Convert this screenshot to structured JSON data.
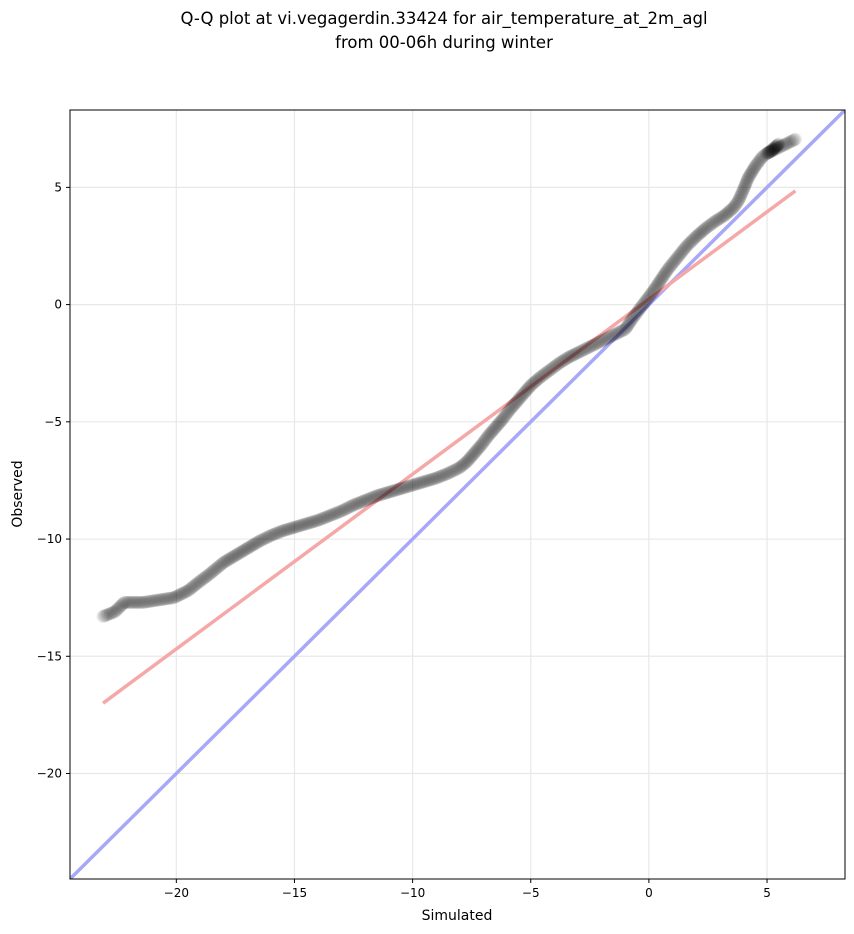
{
  "chart_data": {
    "type": "scatter",
    "title": "Q-Q plot at vi.vegagerdin.33424 for air_temperature_at_2m_agl",
    "subtitle": "from 00-06h during winter",
    "xlabel": "Simulated",
    "ylabel": "Observed",
    "xlim": [
      -24.5,
      8.3
    ],
    "ylim": [
      -24.5,
      8.3
    ],
    "x_ticks": [
      -20,
      -15,
      -10,
      -5,
      0,
      5
    ],
    "y_ticks": [
      -20,
      -15,
      -10,
      -5,
      0,
      5
    ],
    "x_tick_labels": [
      "−20",
      "−15",
      "−10",
      "−5",
      "0",
      "5"
    ],
    "y_tick_labels": [
      "−20",
      "−15",
      "−10",
      "−5",
      "0",
      "5"
    ],
    "grid": true,
    "quantile_curve": [
      [
        -23.1,
        -13.3
      ],
      [
        -22.6,
        -13.1
      ],
      [
        -22.2,
        -12.7
      ],
      [
        -21.4,
        -12.7
      ],
      [
        -20.1,
        -12.5
      ],
      [
        -19.5,
        -12.2
      ],
      [
        -19.0,
        -11.8
      ],
      [
        -18.6,
        -11.5
      ],
      [
        -18.0,
        -11.0
      ],
      [
        -17.5,
        -10.7
      ],
      [
        -17.0,
        -10.4
      ],
      [
        -16.5,
        -10.1
      ],
      [
        -16.0,
        -9.85
      ],
      [
        -15.5,
        -9.65
      ],
      [
        -15.0,
        -9.5
      ],
      [
        -14.5,
        -9.35
      ],
      [
        -14.0,
        -9.2
      ],
      [
        -13.5,
        -9.0
      ],
      [
        -13.0,
        -8.8
      ],
      [
        -12.5,
        -8.55
      ],
      [
        -12.0,
        -8.35
      ],
      [
        -11.5,
        -8.15
      ],
      [
        -11.0,
        -8.0
      ],
      [
        -10.5,
        -7.85
      ],
      [
        -10.0,
        -7.7
      ],
      [
        -9.5,
        -7.55
      ],
      [
        -9.0,
        -7.4
      ],
      [
        -8.5,
        -7.2
      ],
      [
        -8.0,
        -6.95
      ],
      [
        -7.7,
        -6.7
      ],
      [
        -7.4,
        -6.35
      ],
      [
        -7.1,
        -6.0
      ],
      [
        -6.8,
        -5.6
      ],
      [
        -6.5,
        -5.25
      ],
      [
        -6.2,
        -4.9
      ],
      [
        -5.9,
        -4.5
      ],
      [
        -5.6,
        -4.15
      ],
      [
        -5.3,
        -3.8
      ],
      [
        -5.0,
        -3.45
      ],
      [
        -4.6,
        -3.1
      ],
      [
        -4.2,
        -2.8
      ],
      [
        -3.8,
        -2.5
      ],
      [
        -3.4,
        -2.25
      ],
      [
        -3.0,
        -2.05
      ],
      [
        -2.5,
        -1.8
      ],
      [
        -2.0,
        -1.55
      ],
      [
        -1.5,
        -1.3
      ],
      [
        -1.0,
        -1.05
      ],
      [
        -0.7,
        -0.6
      ],
      [
        -0.4,
        -0.2
      ],
      [
        -0.1,
        0.2
      ],
      [
        0.2,
        0.6
      ],
      [
        0.5,
        1.05
      ],
      [
        0.8,
        1.5
      ],
      [
        1.2,
        2.0
      ],
      [
        1.6,
        2.5
      ],
      [
        2.0,
        2.9
      ],
      [
        2.4,
        3.25
      ],
      [
        2.8,
        3.55
      ],
      [
        3.2,
        3.8
      ],
      [
        3.6,
        4.15
      ],
      [
        3.8,
        4.45
      ],
      [
        4.0,
        4.9
      ],
      [
        4.2,
        5.4
      ],
      [
        4.5,
        5.9
      ],
      [
        4.8,
        6.3
      ],
      [
        5.2,
        6.6
      ],
      [
        5.5,
        6.85
      ],
      [
        5.2,
        6.55
      ],
      [
        5.0,
        6.45
      ],
      [
        6.2,
        7.05
      ]
    ],
    "lines": [
      {
        "kind": "identity",
        "color": "#a8a8f8",
        "from": [
          -24.5,
          -24.5
        ],
        "to": [
          8.3,
          8.3
        ]
      },
      {
        "kind": "fit",
        "color": "#f5a8a8",
        "from": [
          -23.1,
          -17.0
        ],
        "to": [
          6.2,
          4.85
        ]
      }
    ],
    "colors": {
      "points": "#000000",
      "grid": "#e8e8e8"
    }
  }
}
